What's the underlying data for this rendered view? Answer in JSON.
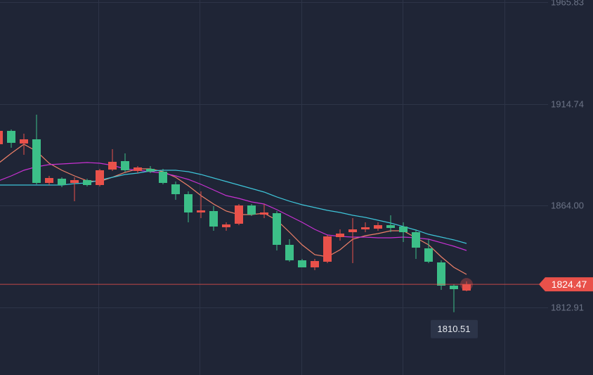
{
  "chart_data": {
    "type": "candlestick",
    "open": [
      1894.66,
      1901.35,
      1895.01,
      1897.12,
      1875.28,
      1877.39,
      1875.28,
      1876.69,
      1874.22,
      1881.97,
      1886.2,
      1881.27,
      1882.32,
      1880.91,
      1874.57,
      1869.64,
      1860.48,
      1861.18,
      1853.08,
      1854.84,
      1864.0,
      1859.42,
      1860.12,
      1844.27,
      1836.52,
      1832.99,
      1835.81,
      1848.14,
      1850.61,
      1852.02,
      1852.37,
      1854.13,
      1853.43,
      1850.61,
      1842.51,
      1835.46,
      1823.83,
      1821.37
    ],
    "high": [
      1901.7,
      1902.06,
      1899.94,
      1909.46,
      1878.8,
      1878.1,
      1878.1,
      1877.39,
      1882.32,
      1892.19,
      1890.08,
      1883.73,
      1883.73,
      1882.32,
      1875.98,
      1871.05,
      1871.05,
      1863.65,
      1855.54,
      1864.71,
      1864.71,
      1864.71,
      1861.18,
      1847.09,
      1837.22,
      1837.22,
      1849.2,
      1852.02,
      1857.66,
      1855.54,
      1855.54,
      1859.07,
      1855.54,
      1852.02,
      1847.09,
      1836.52,
      1824.54,
      1825.95
    ],
    "low": [
      1893.95,
      1892.89,
      1889.37,
      1874.57,
      1874.22,
      1873.16,
      1866.12,
      1873.51,
      1873.51,
      1881.27,
      1880.56,
      1880.21,
      1880.21,
      1874.57,
      1866.82,
      1855.54,
      1857.66,
      1851.32,
      1851.32,
      1854.13,
      1858.72,
      1857.66,
      1841.45,
      1835.81,
      1832.99,
      1831.58,
      1835.11,
      1846.38,
      1835.11,
      1850.61,
      1851.32,
      1850.61,
      1845.68,
      1837.22,
      1835.11,
      1821.72,
      1810.51,
      1821.01
    ],
    "close": [
      1901.35,
      1895.36,
      1897.12,
      1875.28,
      1877.74,
      1874.22,
      1876.69,
      1874.22,
      1881.62,
      1885.85,
      1881.62,
      1883.03,
      1880.91,
      1875.28,
      1869.64,
      1860.48,
      1861.53,
      1853.43,
      1854.49,
      1864.0,
      1859.42,
      1860.48,
      1844.27,
      1836.52,
      1832.99,
      1836.16,
      1848.5,
      1849.91,
      1852.02,
      1853.08,
      1854.13,
      1852.73,
      1850.61,
      1842.86,
      1835.81,
      1823.83,
      1822.07,
      1824.47
    ],
    "up_color": "#e9514a",
    "down_color": "#3cbf88",
    "moving_averages": [
      {
        "color": "#ee8068",
        "values": [
          1885.14,
          1890.08,
          1894.66,
          1891.13,
          1885.14,
          1881.62,
          1878.8,
          1876.33,
          1875.98,
          1878.1,
          1880.56,
          1882.32,
          1882.32,
          1880.91,
          1878.1,
          1873.87,
          1868.93,
          1864.71,
          1861.18,
          1859.42,
          1859.42,
          1860.12,
          1856.6,
          1850.61,
          1844.27,
          1839.34,
          1838.28,
          1841.8,
          1847.09,
          1848.85,
          1849.91,
          1851.32,
          1851.32,
          1847.79,
          1844.27,
          1838.28,
          1832.99,
          1829.47
        ]
      },
      {
        "color": "#c831d2",
        "values": [
          1876.33,
          1878.8,
          1881.62,
          1883.38,
          1884.44,
          1884.79,
          1885.14,
          1885.49,
          1885.14,
          1884.08,
          1882.32,
          1881.62,
          1880.91,
          1880.21,
          1878.8,
          1877.04,
          1874.57,
          1871.75,
          1868.93,
          1867.52,
          1865.76,
          1864.71,
          1861.89,
          1858.72,
          1855.54,
          1852.02,
          1849.2,
          1848.5,
          1848.14,
          1848.14,
          1847.79,
          1847.79,
          1848.14,
          1847.79,
          1847.09,
          1845.33,
          1843.56,
          1841.45
        ]
      },
      {
        "color": "#3ec4d8",
        "values": [
          1874.22,
          1874.22,
          1874.22,
          1874.22,
          1874.22,
          1874.22,
          1874.92,
          1875.28,
          1876.69,
          1878.1,
          1879.51,
          1880.21,
          1881.27,
          1881.62,
          1881.62,
          1880.91,
          1879.51,
          1877.74,
          1875.98,
          1874.22,
          1872.46,
          1870.7,
          1868.23,
          1866.12,
          1864.35,
          1862.94,
          1861.53,
          1860.48,
          1859.07,
          1858.01,
          1856.6,
          1855.19,
          1853.43,
          1851.67,
          1849.55,
          1848.14,
          1846.74,
          1844.97
        ]
      }
    ],
    "ylim": [
      1779.08,
      1966.89
    ],
    "yticks": [
      1965.83,
      1914.74,
      {
        "value": 1864,
        "label": "1864.00"
      },
      1812.91
    ],
    "grid": true
  }
}
